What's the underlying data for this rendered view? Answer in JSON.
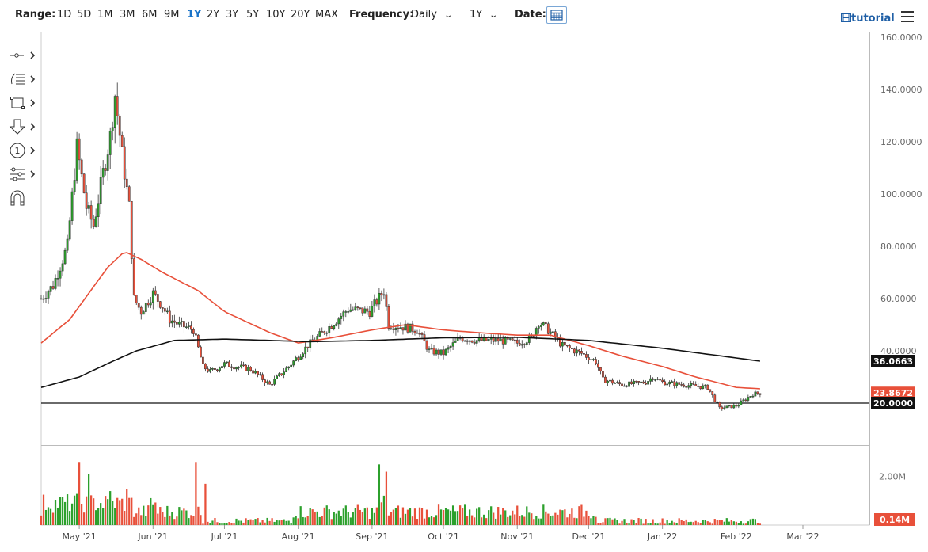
{
  "toolbar": {
    "range_label": "Range:",
    "ranges": [
      "1D",
      "5D",
      "1M",
      "3M",
      "6M",
      "9M",
      "1Y",
      "2Y",
      "3Y",
      "5Y",
      "10Y",
      "20Y",
      "MAX"
    ],
    "active_range": "1Y",
    "frequency_label": "Frequency:",
    "frequency_value": "Daily",
    "period_value": "1Y",
    "date_label": "Date:",
    "tutorial_label": "tutorial",
    "accent_color": "#1a73c8"
  },
  "sidebar": {
    "tools": [
      "line-tool-icon",
      "fibonacci-tool-icon",
      "shape-tool-icon",
      "arrow-tool-icon",
      "annotation-tool-icon",
      "indicator-tool-icon",
      "magnet-icon"
    ]
  },
  "chart_data": {
    "type": "candlestick",
    "x_ticks": [
      "May '21",
      "Jun '21",
      "Jul '21",
      "Aug '21",
      "Sep '21",
      "Oct '21",
      "Nov '21",
      "Dec '21",
      "Jan '22",
      "Feb '22",
      "Mar '22"
    ],
    "y_ticks": [
      "160.0000",
      "140.0000",
      "120.0000",
      "100.0000",
      "80.0000",
      "60.0000",
      "40.0000"
    ],
    "price_range": [
      13,
      160
    ],
    "horizontal_line": 20.0,
    "labels": {
      "ma_long": "36.0663",
      "last_price": "23.8672",
      "hline": "20.0000"
    },
    "volume_tick": "2.00M",
    "volume_last": "0.14M",
    "colors": {
      "up": "#2ca02c",
      "down": "#e8503a",
      "ma_short": "#e8503a",
      "ma_long": "#111111"
    },
    "price_anchors": [
      [
        "2021-04-15",
        60
      ],
      [
        "2021-04-20",
        65
      ],
      [
        "2021-04-26",
        80
      ],
      [
        "2021-04-30",
        118
      ],
      [
        "2021-05-04",
        95
      ],
      [
        "2021-05-07",
        88
      ],
      [
        "2021-05-11",
        108
      ],
      [
        "2021-05-14",
        122
      ],
      [
        "2021-05-16",
        138
      ],
      [
        "2021-05-19",
        115
      ],
      [
        "2021-05-22",
        95
      ],
      [
        "2021-05-24",
        60
      ],
      [
        "2021-05-27",
        55
      ],
      [
        "2021-06-01",
        62
      ],
      [
        "2021-06-05",
        57
      ],
      [
        "2021-06-08",
        52
      ],
      [
        "2021-06-12",
        50
      ],
      [
        "2021-06-18",
        48
      ],
      [
        "2021-06-22",
        34
      ],
      [
        "2021-06-25",
        32
      ],
      [
        "2021-07-01",
        35
      ],
      [
        "2021-07-06",
        34
      ],
      [
        "2021-07-12",
        33
      ],
      [
        "2021-07-20",
        27
      ],
      [
        "2021-07-28",
        34
      ],
      [
        "2021-08-05",
        42
      ],
      [
        "2021-08-15",
        50
      ],
      [
        "2021-08-22",
        56
      ],
      [
        "2021-08-31",
        55
      ],
      [
        "2021-09-06",
        63
      ],
      [
        "2021-09-08",
        50
      ],
      [
        "2021-09-15",
        49
      ],
      [
        "2021-09-20",
        48
      ],
      [
        "2021-09-25",
        40
      ],
      [
        "2021-10-01",
        39
      ],
      [
        "2021-10-08",
        45
      ],
      [
        "2021-10-15",
        44
      ],
      [
        "2021-10-25",
        44
      ],
      [
        "2021-11-01",
        43
      ],
      [
        "2021-11-07",
        45
      ],
      [
        "2021-11-10",
        51
      ],
      [
        "2021-11-14",
        48
      ],
      [
        "2021-11-20",
        42
      ],
      [
        "2021-11-28",
        39
      ],
      [
        "2021-12-04",
        36
      ],
      [
        "2021-12-07",
        29
      ],
      [
        "2021-12-15",
        27
      ],
      [
        "2021-12-25",
        28
      ],
      [
        "2021-12-28",
        30
      ],
      [
        "2022-01-01",
        28
      ],
      [
        "2022-01-10",
        27
      ],
      [
        "2022-01-20",
        26
      ],
      [
        "2022-01-25",
        18
      ],
      [
        "2022-02-01",
        19
      ],
      [
        "2022-02-08",
        23.5
      ],
      [
        "2022-02-11",
        23.87
      ]
    ],
    "ma50_anchors": [
      [
        "2021-04-15",
        43
      ],
      [
        "2021-04-27",
        52
      ],
      [
        "2021-05-05",
        62
      ],
      [
        "2021-05-13",
        72
      ],
      [
        "2021-05-20",
        78
      ],
      [
        "2021-05-27",
        75
      ],
      [
        "2021-06-05",
        70
      ],
      [
        "2021-06-20",
        63
      ],
      [
        "2021-07-01",
        55
      ],
      [
        "2021-07-20",
        47
      ],
      [
        "2021-08-01",
        43
      ],
      [
        "2021-08-15",
        45
      ],
      [
        "2021-09-01",
        48
      ],
      [
        "2021-09-15",
        50
      ],
      [
        "2021-10-01",
        48
      ],
      [
        "2021-10-15",
        47
      ],
      [
        "2021-11-01",
        46
      ],
      [
        "2021-11-15",
        46
      ],
      [
        "2021-12-01",
        42
      ],
      [
        "2021-12-15",
        38
      ],
      [
        "2022-01-01",
        34
      ],
      [
        "2022-01-15",
        30
      ],
      [
        "2022-02-01",
        26
      ],
      [
        "2022-02-11",
        25.5
      ]
    ],
    "ma200_anchors": [
      [
        "2021-04-15",
        26
      ],
      [
        "2021-05-01",
        30
      ],
      [
        "2021-05-15",
        36
      ],
      [
        "2021-05-25",
        40
      ],
      [
        "2021-06-10",
        44
      ],
      [
        "2021-07-01",
        44.5
      ],
      [
        "2021-07-20",
        44
      ],
      [
        "2021-08-05",
        43.5
      ],
      [
        "2021-09-01",
        44
      ],
      [
        "2021-10-01",
        45
      ],
      [
        "2021-11-01",
        45.2
      ],
      [
        "2021-12-01",
        44
      ],
      [
        "2022-01-01",
        41
      ],
      [
        "2022-02-11",
        36.06
      ]
    ],
    "volume_spikes": [
      [
        "2021-05-01",
        2.6
      ],
      [
        "2021-05-05",
        2.1
      ],
      [
        "2021-06-19",
        2.6
      ],
      [
        "2021-06-23",
        1.7
      ],
      [
        "2021-09-04",
        2.5
      ],
      [
        "2021-09-07",
        2.2
      ],
      [
        "2021-05-14",
        1.4
      ],
      [
        "2021-05-21",
        1.5
      ]
    ]
  }
}
